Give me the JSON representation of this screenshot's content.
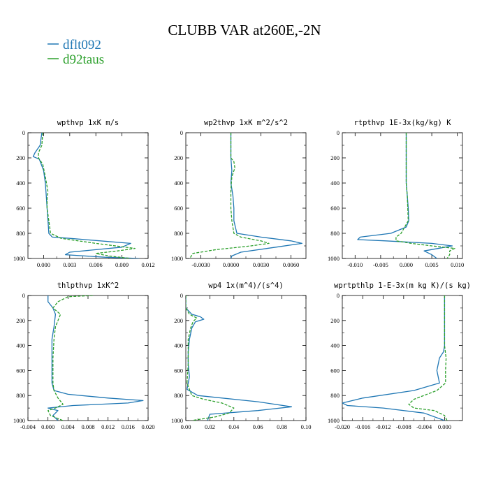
{
  "title": "CLUBB VAR at260E,-2N",
  "colors": {
    "dflt092": "#1f77b4",
    "d92taus": "#2ca02c",
    "axis": "#000000"
  },
  "chart_data": [
    {
      "type": "line",
      "title": "wpthvp  1xK m/s",
      "ylim": [
        1000,
        0
      ],
      "y_ticks": [
        0,
        200,
        400,
        600,
        800,
        1000
      ],
      "xlim": [
        -0.0018,
        0.012
      ],
      "x_ticks": [
        0.0,
        0.003,
        0.006,
        0.009,
        0.012
      ],
      "x_tick_labels": [
        "0.000",
        "0.003",
        "0.006",
        "0.009",
        "0.012"
      ],
      "series": [
        {
          "name": "dflt092",
          "style": "solid",
          "x": [
            -0.0002,
            -0.0004,
            -0.001,
            -0.0012,
            -0.0005,
            0.0,
            0.0002,
            0.0003,
            0.0004,
            0.0005,
            0.0006,
            0.001,
            0.003,
            0.01,
            0.009,
            0.003,
            0.0025,
            0.007,
            0.011
          ],
          "y": [
            0,
            100,
            160,
            190,
            210,
            300,
            400,
            500,
            600,
            700,
            800,
            830,
            840,
            880,
            910,
            950,
            970,
            990,
            1000
          ]
        },
        {
          "name": "d92taus",
          "style": "dashed",
          "x": [
            -0.0001,
            -0.0002,
            -0.0006,
            -0.0006,
            -0.0001,
            0.0002,
            0.0005,
            0.0004,
            0.0004,
            0.0006,
            0.0008,
            0.002,
            0.006,
            0.0105,
            0.0085,
            0.006,
            0.0075,
            0.01
          ],
          "y": [
            0,
            100,
            160,
            200,
            250,
            350,
            470,
            520,
            600,
            700,
            800,
            840,
            880,
            920,
            940,
            960,
            980,
            1000
          ]
        }
      ]
    },
    {
      "type": "line",
      "title": "wp2thvp  1xK m^2/s^2",
      "ylim": [
        1000,
        0
      ],
      "y_ticks": [
        0,
        200,
        400,
        600,
        800,
        1000
      ],
      "xlim": [
        -0.0045,
        0.0075
      ],
      "x_ticks": [
        -0.003,
        0.0,
        0.003,
        0.006
      ],
      "x_tick_labels": [
        "-0.0030",
        "0.0000",
        "0.0030",
        "0.0060"
      ],
      "series": [
        {
          "name": "dflt092",
          "style": "solid",
          "x": [
            0.0,
            0.0,
            0.0001,
            0.0,
            0.0002,
            0.0003,
            0.0003,
            0.0006,
            0.003,
            0.006,
            0.0071,
            0.0045,
            0.001,
            0.0001,
            0.0
          ],
          "y": [
            0,
            200,
            300,
            400,
            500,
            600,
            700,
            800,
            830,
            860,
            880,
            910,
            950,
            980,
            1000
          ]
        },
        {
          "name": "d92taus",
          "style": "dashed",
          "x": [
            0.0,
            0.0,
            0.0003,
            0.0004,
            0.0001,
            0.0,
            0.0,
            0.0001,
            0.0003,
            0.001,
            0.003,
            0.0038,
            0.002,
            -0.0015,
            -0.0038,
            -0.0041
          ],
          "y": [
            0,
            200,
            230,
            280,
            350,
            450,
            600,
            700,
            800,
            830,
            860,
            880,
            900,
            930,
            960,
            1000
          ]
        }
      ]
    },
    {
      "type": "line",
      "title": "rtpthvp  1E-3x(kg/kg) K",
      "ylim": [
        1000,
        0
      ],
      "y_ticks": [
        0,
        200,
        400,
        600,
        800,
        1000
      ],
      "xlim": [
        -0.0125,
        0.011
      ],
      "x_ticks": [
        -0.01,
        -0.005,
        0.0,
        0.005,
        0.01
      ],
      "x_tick_labels": [
        "-0.010",
        "-0.005",
        "0.000",
        "0.005",
        "0.010"
      ],
      "series": [
        {
          "name": "dflt092",
          "style": "solid",
          "x": [
            0.0,
            0.0,
            0.0,
            0.0002,
            0.0004,
            0.0005,
            0.0,
            -0.003,
            -0.009,
            -0.0095,
            -0.004,
            0.005,
            0.009,
            0.0035,
            0.005,
            0.006
          ],
          "y": [
            0,
            200,
            400,
            500,
            600,
            700,
            750,
            800,
            830,
            850,
            860,
            880,
            900,
            940,
            970,
            1000
          ]
        },
        {
          "name": "d92taus",
          "style": "dashed",
          "x": [
            0.0,
            0.0,
            0.0,
            0.0002,
            0.0003,
            0.0004,
            -0.0003,
            -0.001,
            -0.002,
            -0.002,
            0.001,
            0.005,
            0.0095,
            0.0085,
            0.0085,
            0.008
          ],
          "y": [
            0,
            200,
            400,
            500,
            600,
            700,
            750,
            800,
            830,
            860,
            880,
            900,
            920,
            940,
            970,
            1000
          ]
        }
      ]
    },
    {
      "type": "line",
      "title": "thlpthvp  1xK^2",
      "ylim": [
        1000,
        0
      ],
      "y_ticks": [
        0,
        200,
        400,
        600,
        800,
        1000
      ],
      "xlim": [
        -0.004,
        0.02
      ],
      "x_ticks": [
        -0.004,
        0.0,
        0.004,
        0.008,
        0.012,
        0.016,
        0.02
      ],
      "x_tick_labels": [
        "-0.004",
        "0.000",
        "0.004",
        "0.008",
        "0.012",
        "0.016",
        "0.020"
      ],
      "series": [
        {
          "name": "dflt092",
          "style": "solid",
          "x": [
            0.0,
            0.0,
            0.001,
            0.0015,
            0.0012,
            0.0008,
            0.0008,
            0.0008,
            0.0008,
            0.0012,
            0.004,
            0.012,
            0.019,
            0.016,
            0.005,
            0.0,
            0.002,
            0.001,
            0.002
          ],
          "y": [
            0,
            50,
            100,
            150,
            250,
            350,
            450,
            550,
            700,
            760,
            790,
            820,
            840,
            860,
            880,
            900,
            920,
            960,
            1000
          ]
        },
        {
          "name": "d92taus",
          "style": "dashed",
          "x": [
            0.009,
            0.004,
            0.002,
            0.001,
            0.0025,
            0.0015,
            0.0012,
            0.001,
            0.001,
            0.001,
            0.0012,
            0.002,
            0.003,
            0.0015,
            0.0,
            0.0005,
            0.003
          ],
          "y": [
            0,
            10,
            50,
            100,
            150,
            250,
            350,
            500,
            600,
            700,
            760,
            820,
            870,
            900,
            920,
            960,
            1000
          ]
        }
      ]
    },
    {
      "type": "line",
      "title": "wp4  1x(m^4)/(s^4)",
      "ylim": [
        1000,
        0
      ],
      "y_ticks": [
        0,
        200,
        400,
        600,
        800,
        1000
      ],
      "xlim": [
        0.0,
        0.1
      ],
      "x_ticks": [
        0.0,
        0.02,
        0.04,
        0.06,
        0.08,
        0.1
      ],
      "x_tick_labels": [
        "0.00",
        "0.02",
        "0.04",
        "0.06",
        "0.08",
        "0.10"
      ],
      "series": [
        {
          "name": "dflt092",
          "style": "solid",
          "x": [
            0.0,
            0.0,
            0.005,
            0.012,
            0.015,
            0.008,
            0.005,
            0.003,
            0.002,
            0.002,
            0.003,
            0.001,
            0.01,
            0.06,
            0.088,
            0.06,
            0.02,
            0.018
          ],
          "y": [
            0,
            100,
            150,
            170,
            190,
            210,
            260,
            350,
            450,
            550,
            650,
            750,
            800,
            850,
            890,
            920,
            950,
            1000
          ]
        },
        {
          "name": "d92taus",
          "style": "dashed",
          "x": [
            0.0,
            0.0,
            0.003,
            0.009,
            0.006,
            0.004,
            0.002,
            0.002,
            0.002,
            0.001,
            0.005,
            0.015,
            0.03,
            0.04,
            0.036,
            0.025,
            0.005
          ],
          "y": [
            0,
            100,
            150,
            180,
            210,
            260,
            350,
            450,
            550,
            700,
            800,
            830,
            860,
            900,
            940,
            970,
            1000
          ]
        }
      ]
    },
    {
      "type": "line",
      "title": "wprtpthlp  1-E-3x(m kg K)/(s kg)",
      "ylim": [
        1000,
        0
      ],
      "y_ticks": [
        0,
        200,
        400,
        600,
        800,
        1000
      ],
      "xlim": [
        -0.02,
        0.0035
      ],
      "x_ticks": [
        -0.02,
        -0.016,
        -0.012,
        -0.008,
        -0.004,
        0.0
      ],
      "x_tick_labels": [
        "-0.020",
        "-0.016",
        "-0.012",
        "-0.008",
        "-0.004",
        "0.000"
      ],
      "series": [
        {
          "name": "dflt092",
          "style": "solid",
          "x": [
            0.0,
            0.0,
            0.0,
            -0.0002,
            -0.001,
            -0.0015,
            -0.001,
            -0.006,
            -0.016,
            -0.02,
            -0.019,
            -0.012,
            -0.004,
            0.0
          ],
          "y": [
            0,
            200,
            400,
            450,
            500,
            600,
            700,
            760,
            820,
            860,
            880,
            900,
            940,
            1000
          ]
        },
        {
          "name": "d92taus",
          "style": "dashed",
          "x": [
            0.0,
            0.0,
            0.0,
            0.0003,
            0.0002,
            0.0002,
            -0.0015,
            -0.006,
            -0.007,
            -0.006,
            -0.002,
            0.0,
            0.0005
          ],
          "y": [
            0,
            200,
            400,
            500,
            600,
            700,
            760,
            830,
            870,
            900,
            920,
            960,
            1000
          ]
        }
      ]
    }
  ]
}
